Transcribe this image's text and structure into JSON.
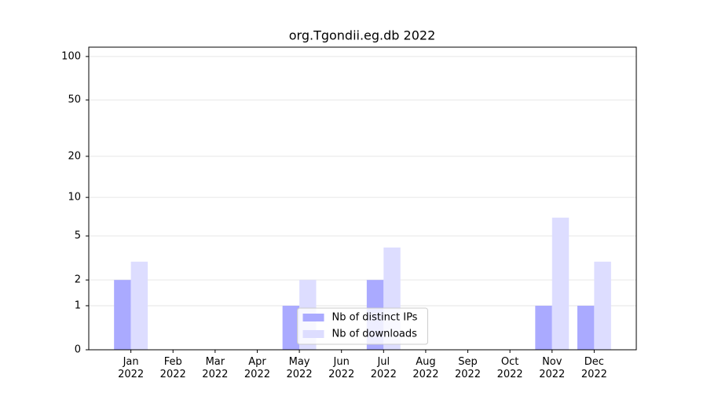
{
  "chart_data": {
    "type": "bar",
    "title": "org.Tgondii.eg.db 2022",
    "categories": [
      "Jan\n2022",
      "Feb\n2022",
      "Mar\n2022",
      "Apr\n2022",
      "May\n2022",
      "Jun\n2022",
      "Jul\n2022",
      "Aug\n2022",
      "Sep\n2022",
      "Oct\n2022",
      "Nov\n2022",
      "Dec\n2022"
    ],
    "series": [
      {
        "name": "Nb of distinct IPs",
        "color": "#aaaaff",
        "values": [
          2,
          0,
          0,
          0,
          1,
          0,
          2,
          0,
          0,
          0,
          1,
          1
        ]
      },
      {
        "name": "Nb of downloads",
        "color": "#ddddff",
        "values": [
          3,
          0,
          0,
          0,
          2,
          0,
          4,
          0,
          0,
          0,
          7,
          3
        ]
      }
    ],
    "yscale": "log1p",
    "ylim": [
      0,
      116
    ],
    "yticks": [
      0,
      1,
      2,
      5,
      10,
      20,
      50,
      100
    ],
    "grid": true,
    "legend": "lower center"
  }
}
